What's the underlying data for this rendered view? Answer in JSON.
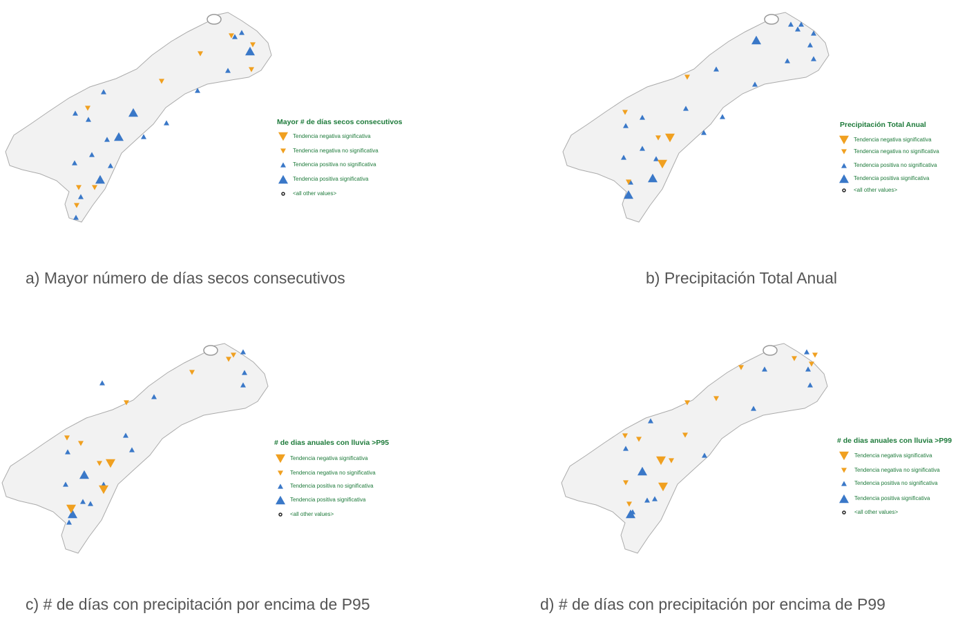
{
  "panels": [
    {
      "legend_title": "Mayor # de días secos consecutivos",
      "legend_items": [
        "Tendencia negativa significativa",
        "Tendencia negativa no significativa",
        "Tendencia positiva no significativa",
        "Tendencia positiva significativa",
        "<all other values>"
      ],
      "caption": "a) Mayor número de días secos consecutivos"
    },
    {
      "legend_title": "Precipitación Total Anual",
      "legend_items": [
        "Tendencia negativa significativa",
        "Tendencia negativa no significativa",
        "Tendencia positiva no significativa",
        "Tendencia positiva significativa",
        "<all other values>"
      ],
      "caption": "b) Precipitación Total Anual"
    },
    {
      "legend_title": "# de dias anuales con lluvia >P95",
      "legend_items": [
        "Tendencia negativa significativa",
        "Tendencia negativa no significativa",
        "Tendencia positiva no significativa",
        "Tendencia positiva significativa",
        "<all other values>"
      ],
      "caption": "c) # de días con precipitación por encima de P95"
    },
    {
      "legend_title": "# de dias anuales con lluvia >P99",
      "legend_items": [
        "Tendencia negativa significativa",
        "Tendencia negativa no significativa",
        "Tendencia positiva no significativa",
        "Tendencia positiva significativa",
        "<all other values>"
      ],
      "caption": "d) # de días con precipitación por encima de P99"
    }
  ]
}
